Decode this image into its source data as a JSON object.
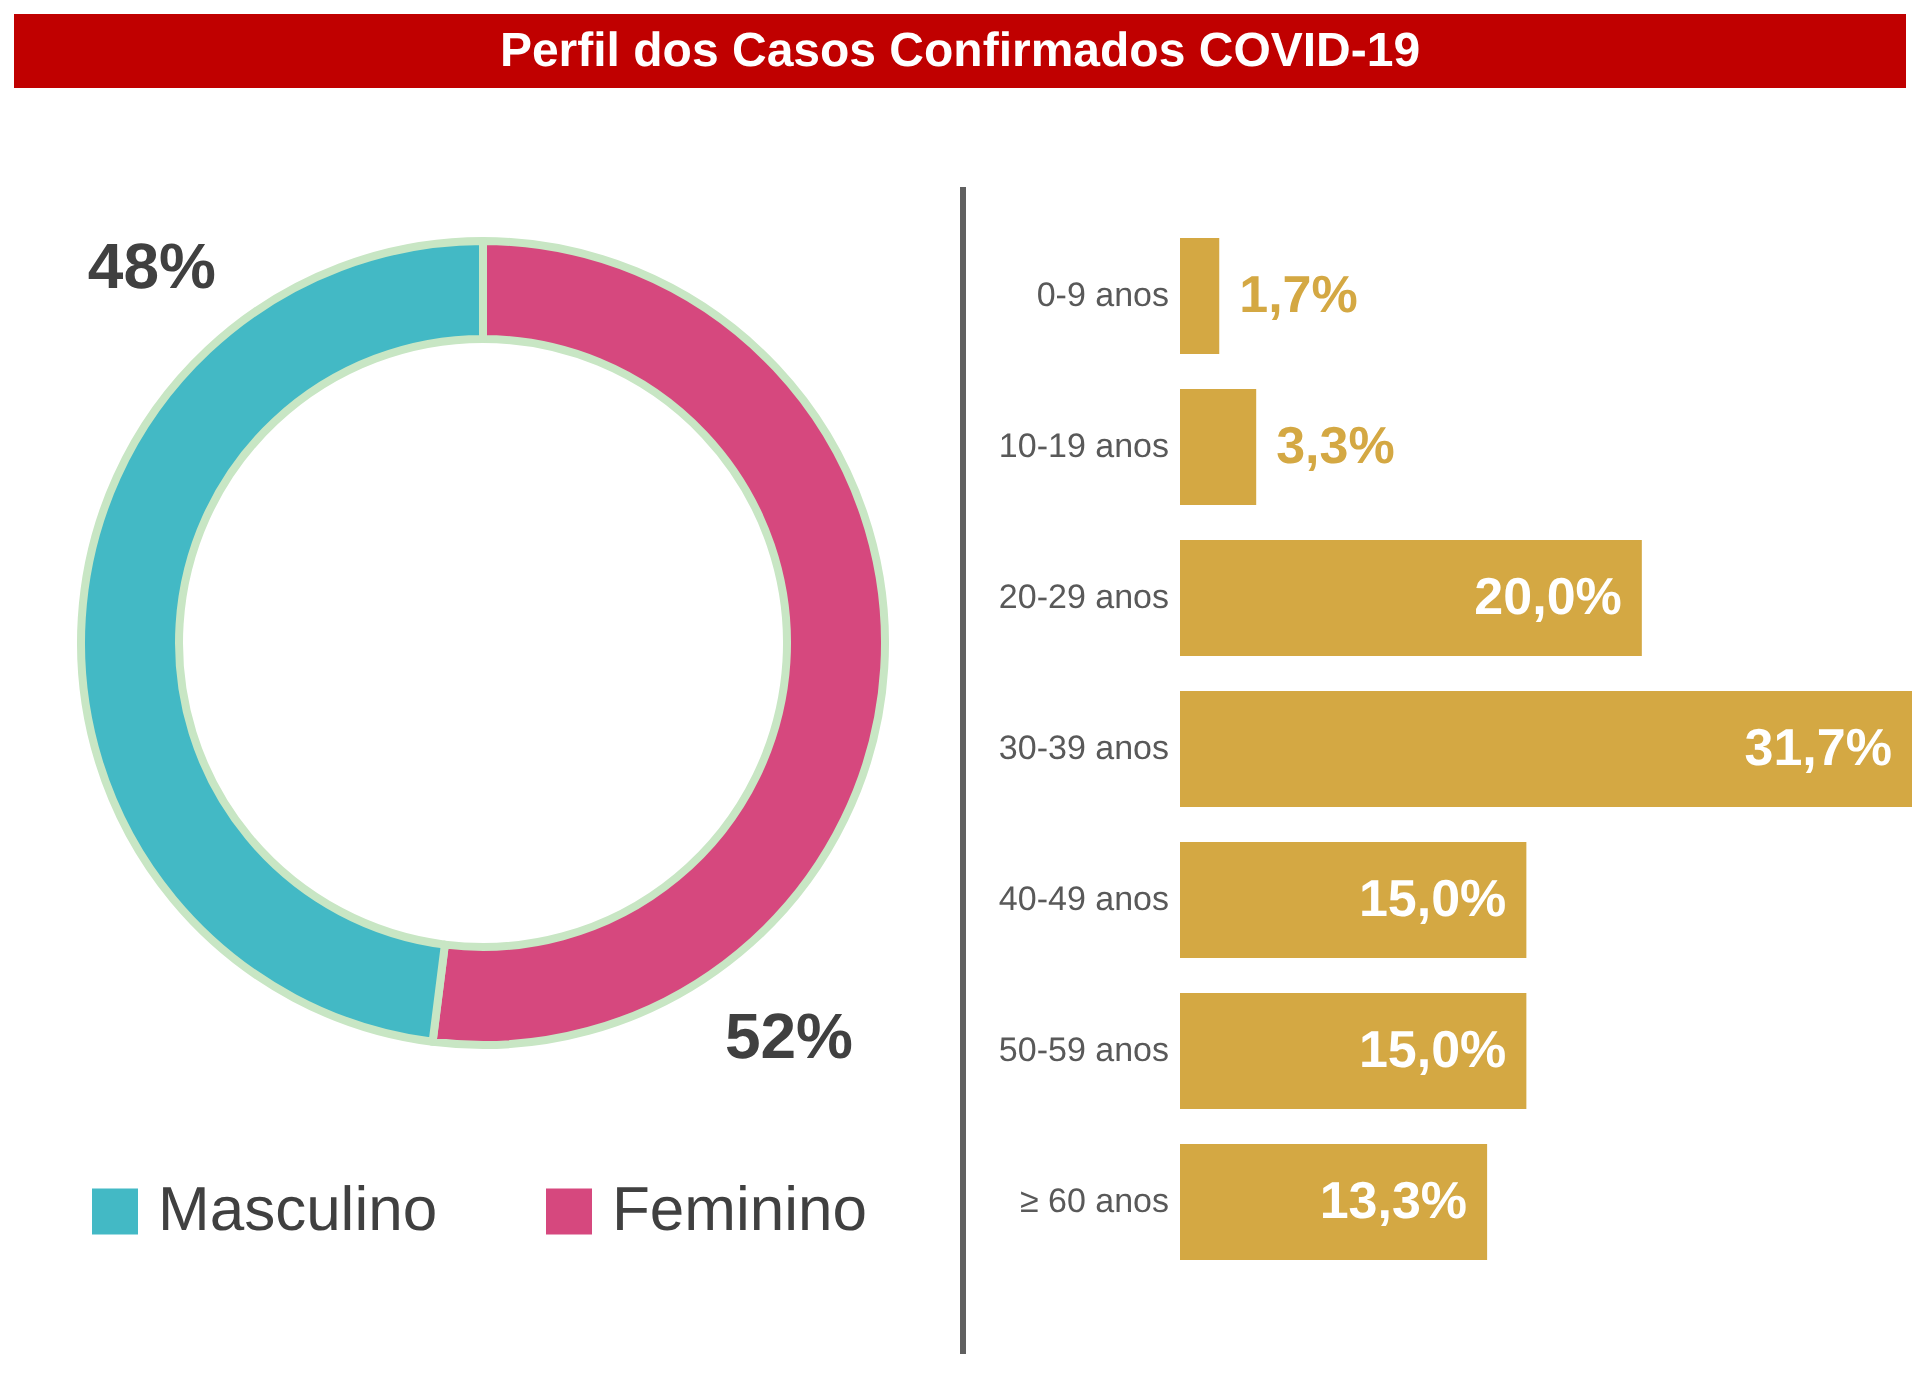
{
  "chart_data": [
    {
      "type": "donut",
      "title": "Perfil dos Casos Confirmados COVID-19",
      "categories": [
        "Masculino",
        "Feminino"
      ],
      "values": [
        48,
        52
      ],
      "colors": [
        "#43b9c5",
        "#d6487e"
      ],
      "value_labels": [
        "48%",
        "52%"
      ],
      "legend": "bottom"
    },
    {
      "type": "bar",
      "orientation": "horizontal",
      "categories": [
        "0-9 anos",
        "10-19 anos",
        "20-29 anos",
        "30-39 anos",
        "40-49 anos",
        "50-59 anos",
        "≥ 60 anos"
      ],
      "values": [
        1.7,
        3.3,
        20.0,
        31.7,
        15.0,
        15.0,
        13.3
      ],
      "color": "#d4a843",
      "value_labels": [
        "1,7%",
        "3,3%",
        "20,0%",
        "31,7%",
        "15,0%",
        "15,0%",
        "13,3%"
      ],
      "tick_labels": "y"
    }
  ]
}
